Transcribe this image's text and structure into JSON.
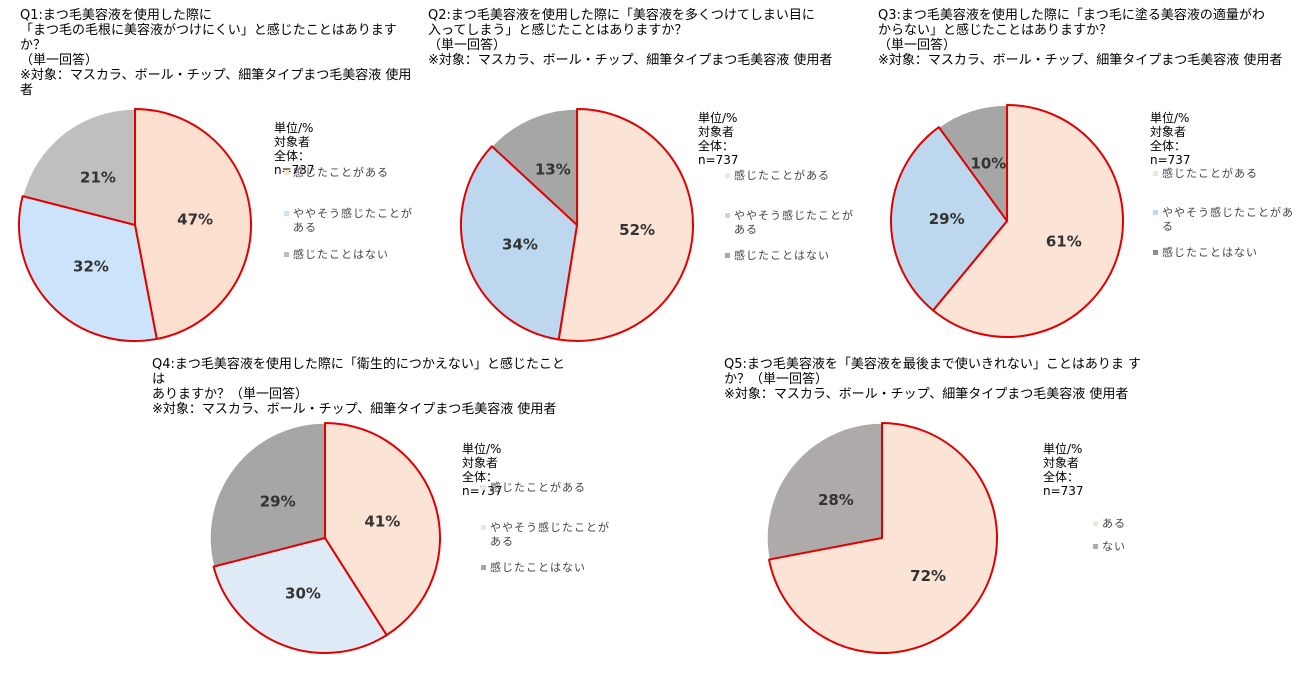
{
  "colors": {
    "emphasis_stroke": "#e00000",
    "separator": "#ffffff"
  },
  "chart_data": [
    {
      "type": "pie",
      "title": "Q1:まつ毛美容液を使用した際に\n「まつ毛の毛根に美容液がつけにくい」と感じたことはありますか？\n（単一回答）\n※対象：マスカラ、ボール・チップ、細筆タイプまつ毛美容液 使用者",
      "unit": "単位/%\n対象者全体：n=737",
      "categories": [
        "感じたことがある",
        "ややそう感じたことがある",
        "感じたことはない"
      ],
      "values": [
        47,
        32,
        21
      ],
      "value_labels": [
        "47%",
        "32%",
        "21%"
      ],
      "colors": [
        "#fbe0cf",
        "#cce4fb",
        "#bfbfbf"
      ],
      "legend_colors": [
        "#fbe0cf",
        "#cce4fb",
        "#bfbfbf"
      ],
      "highlighted": [
        0,
        1
      ]
    },
    {
      "type": "pie",
      "title": "Q2:まつ毛美容液を使用した際に「美容液を多くつけてしまい目に\n入ってしまう」と感じたことはありますか？\n（単一回答）\n※対象：マスカラ、ボール・チップ、細筆タイプまつ毛美容液 使用者",
      "unit": "単位/%\n対象者全体：n=737",
      "categories": [
        "感じたことがある",
        "ややそう感じたことがある",
        "感じたことはない"
      ],
      "values": [
        52,
        34,
        13
      ],
      "value_labels": [
        "52%",
        "34%",
        "13%"
      ],
      "colors": [
        "#fbe3d5",
        "#bdd7ee",
        "#a6a6a6"
      ],
      "legend_colors": [
        "#fbe3d5",
        "#bdd7ee",
        "#a6a6a6"
      ],
      "highlighted": [
        0,
        1
      ]
    },
    {
      "type": "pie",
      "title": "Q3:まつ毛美容液を使用した際に「まつ毛に塗る美容液の適量がわ\nからない」と感じたことはありますか？\n（単一回答）\n※対象：マスカラ、ボール・チップ、細筆タイプまつ毛美容液 使用者",
      "unit": "単位/%\n対象者全体：n=737",
      "categories": [
        "感じたことがある",
        "ややそう感じたことがある",
        "感じたことはない"
      ],
      "values": [
        61,
        29,
        10
      ],
      "value_labels": [
        "61%",
        "29%",
        "10%"
      ],
      "colors": [
        "#fbe3d5",
        "#bdd7ee",
        "#a6a6a6"
      ],
      "legend_colors": [
        "#fbe3d5",
        "#bdd7ee",
        "#8c8c8c"
      ],
      "highlighted": [
        0,
        1
      ]
    },
    {
      "type": "pie",
      "title": "Q4:まつ毛美容液を使用した際に「衛生的につかえない」と感じたことは\nありますか？（単一回答）\n※対象：マスカラ、ボール・チップ、細筆タイプまつ毛美容液 使用者",
      "unit": "単位/%\n対象者全体：n=737",
      "categories": [
        "感じたことがある",
        "ややそう感じたことがある",
        "感じたことはない"
      ],
      "values": [
        41,
        30,
        29
      ],
      "value_labels": [
        "41%",
        "30%",
        "29%"
      ],
      "colors": [
        "#fbe3d5",
        "#deebf7",
        "#a6a6a6"
      ],
      "legend_colors": [
        "#fbe3d5",
        "#deebf7",
        "#a6a6a6"
      ],
      "highlighted": [
        0,
        1
      ]
    },
    {
      "type": "pie",
      "title": "Q5:まつ毛美容液を「美容液を最後まで使いきれない」ことはありま す\nか？（単一回答）\n※対象：マスカラ、ボール・チップ、細筆タイプまつ毛美容液 使用者",
      "unit": "単位/%\n対象者全体：n=737",
      "categories": [
        "ある",
        "ない"
      ],
      "values": [
        72,
        28
      ],
      "value_labels": [
        "72%",
        "28%"
      ],
      "colors": [
        "#fbe3d5",
        "#aeaaaa"
      ],
      "legend_colors": [
        "#fbe3d5",
        "#aeaaaa"
      ],
      "highlighted": [
        0
      ]
    }
  ]
}
